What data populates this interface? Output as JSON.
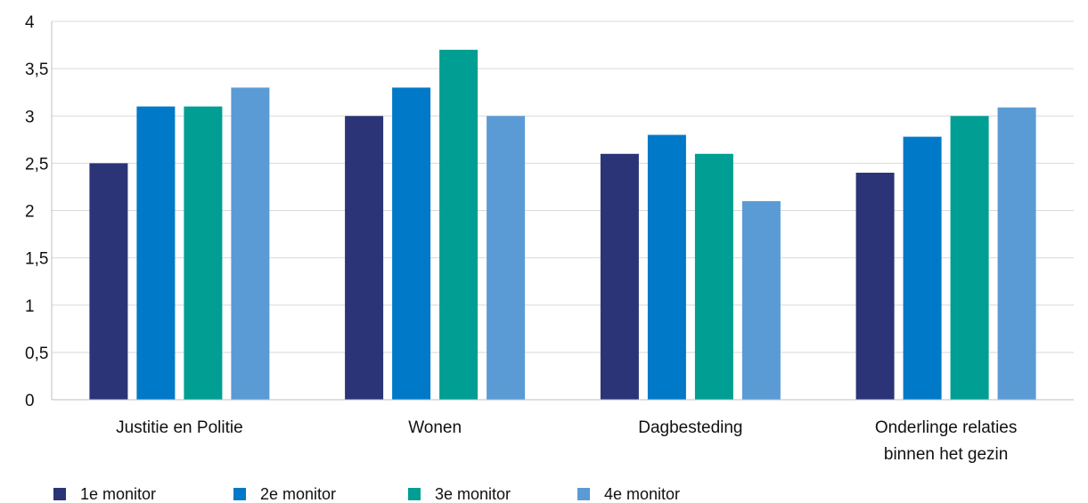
{
  "chart_data": {
    "type": "bar",
    "categories": [
      [
        "Justitie en Politie"
      ],
      [
        "Wonen"
      ],
      [
        "Dagbesteding"
      ],
      [
        "Onderlinge relaties",
        "binnen het gezin"
      ]
    ],
    "series": [
      {
        "name": "1e monitor",
        "color": "#2b3476",
        "values": [
          2.5,
          3.0,
          2.6,
          2.4
        ]
      },
      {
        "name": "2e monitor",
        "color": "#0079c8",
        "values": [
          3.1,
          3.3,
          2.8,
          2.78
        ]
      },
      {
        "name": "3e monitor",
        "color": "#009e93",
        "values": [
          3.1,
          3.7,
          2.6,
          3.0
        ]
      },
      {
        "name": "4e monitor",
        "color": "#5b9bd5",
        "values": [
          3.3,
          3.0,
          2.1,
          3.09
        ]
      }
    ],
    "yticks": [
      "0",
      "0,5",
      "1",
      "1,5",
      "2",
      "2,5",
      "3",
      "3,5",
      "4"
    ],
    "ylim": [
      0,
      4
    ],
    "grid": true,
    "legend_position": "bottom-left",
    "title": "",
    "xlabel": "",
    "ylabel": ""
  }
}
